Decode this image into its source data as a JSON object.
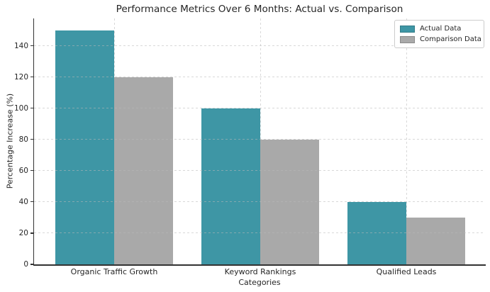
{
  "chart_data": {
    "type": "bar",
    "title": "Performance Metrics Over 6 Months: Actual vs. Comparison",
    "xlabel": "Categories",
    "ylabel": "Percentage Increase (%)",
    "categories": [
      "Organic Traffic Growth",
      "Keyword Rankings",
      "Qualified Leads"
    ],
    "series": [
      {
        "name": "Actual Data",
        "color": "#3e96a5",
        "values": [
          150,
          100,
          40
        ]
      },
      {
        "name": "Comparison Data",
        "color": "#a9a9a9",
        "values": [
          120,
          80,
          30
        ]
      }
    ],
    "ylim": [
      0,
      157.5
    ],
    "yticks": [
      0,
      20,
      40,
      60,
      80,
      100,
      120,
      140
    ],
    "grid": true,
    "grid_style": "dashed",
    "legend_position": "upper right",
    "legend_labels": [
      "Actual Data",
      "Comparison Data"
    ],
    "spine_color": "#333333",
    "background_color": "#ffffff"
  }
}
